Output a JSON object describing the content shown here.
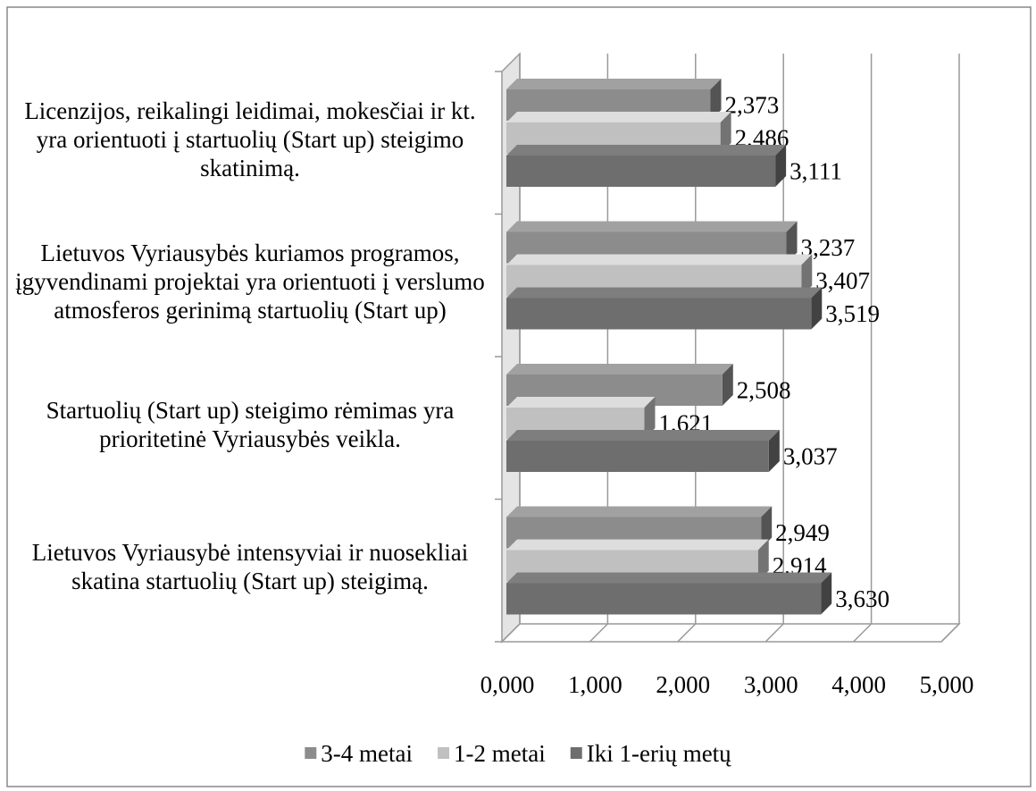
{
  "chart_data": {
    "type": "bar3d_horizontal",
    "categories": [
      "Licenzijos, reikalingi leidimai, mokesčiai ir kt. yra orientuoti į startuolių (Start up) steigimo skatinimą.",
      "Lietuvos Vyriausybės kuriamos programos, įgyvendinami projektai yra orientuoti į verslumo atmosferos gerinimą startuolių (Start up)",
      "Startuolių (Start up) steigimo rėmimas yra prioritetinė Vyriausybės veikla.",
      "Lietuvos Vyriausybė intensyviai ir nuosekliai skatina startuolių (Start up) steigimą."
    ],
    "series": [
      {
        "name": "3-4 metai",
        "color": "#8c8c8c",
        "values": [
          2.373,
          3.237,
          2.508,
          2.949
        ],
        "value_labels": [
          "2,373",
          "3,237",
          "2,508",
          "2,949"
        ]
      },
      {
        "name": "1-2 metai",
        "color": "#c0c0c0",
        "values": [
          2.486,
          3.407,
          1.621,
          2.914
        ],
        "value_labels": [
          "2,486",
          "3,407",
          "1,621",
          "2,914"
        ]
      },
      {
        "name": "Iki 1-erių metų",
        "color": "#6e6e6e",
        "values": [
          3.111,
          3.519,
          3.037,
          3.63
        ],
        "value_labels": [
          "3,111",
          "3,519",
          "3,037",
          "3,630"
        ]
      }
    ],
    "xlim": [
      0,
      5
    ],
    "xticks": [
      {
        "value": 0,
        "label": "0,000"
      },
      {
        "value": 1,
        "label": "1,000"
      },
      {
        "value": 2,
        "label": "2,000"
      },
      {
        "value": 3,
        "label": "3,000"
      },
      {
        "value": 4,
        "label": "4,000"
      },
      {
        "value": 5,
        "label": "5,000"
      }
    ],
    "grid": true,
    "legend": "bottom"
  }
}
